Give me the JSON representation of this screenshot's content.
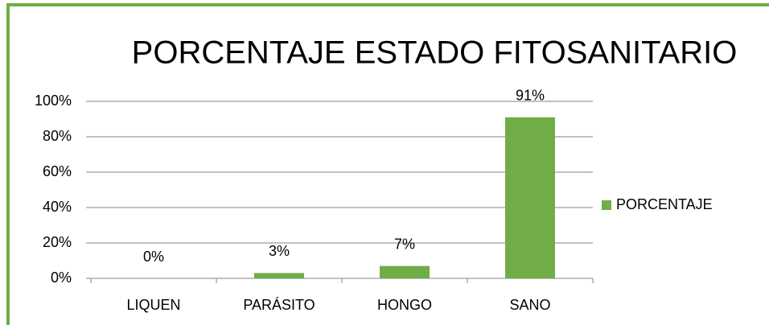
{
  "chart_data": {
    "type": "bar",
    "title": "PORCENTAJE ESTADO FITOSANITARIO",
    "categories": [
      "LIQUEN",
      "PARÁSITO",
      "HONGO",
      "SANO"
    ],
    "series": [
      {
        "name": "PORCENTAJE",
        "color": "#70ad47",
        "values": [
          0,
          3,
          7,
          91
        ],
        "value_labels": [
          "0%",
          "3%",
          "7%",
          "91%"
        ]
      }
    ],
    "ylim": [
      0,
      100
    ],
    "yticks": [
      {
        "value": 0,
        "label": "0%"
      },
      {
        "value": 20,
        "label": "20%"
      },
      {
        "value": 40,
        "label": "40%"
      },
      {
        "value": 60,
        "label": "60%"
      },
      {
        "value": 80,
        "label": "80%"
      },
      {
        "value": 100,
        "label": "100%"
      }
    ],
    "grid": true,
    "legend": "right"
  }
}
